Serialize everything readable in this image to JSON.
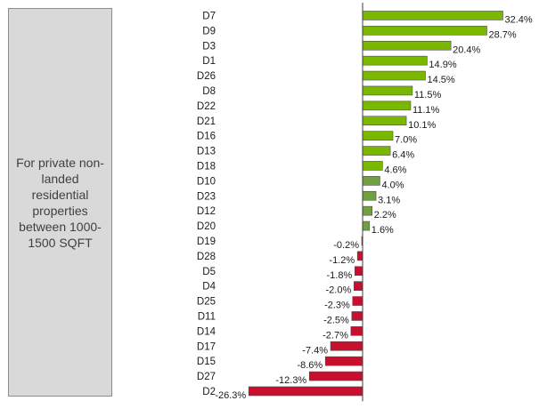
{
  "note": "For private non-landed residential properties between 1000-1500 SQFT",
  "chart_data": {
    "type": "bar",
    "orientation": "horizontal",
    "categories": [
      "D7",
      "D9",
      "D3",
      "D1",
      "D26",
      "D8",
      "D22",
      "D21",
      "D16",
      "D13",
      "D18",
      "D10",
      "D23",
      "D12",
      "D20",
      "D19",
      "D28",
      "D5",
      "D4",
      "D25",
      "D11",
      "D14",
      "D17",
      "D15",
      "D27",
      "D2"
    ],
    "values": [
      32.4,
      28.7,
      20.4,
      14.9,
      14.5,
      11.5,
      11.1,
      10.1,
      7.0,
      6.4,
      4.6,
      4.0,
      3.1,
      2.2,
      1.6,
      -0.2,
      -1.2,
      -1.8,
      -2.0,
      -2.3,
      -2.5,
      -2.7,
      -7.4,
      -8.6,
      -12.3,
      -26.3
    ],
    "value_labels": [
      "32.4%",
      "28.7%",
      "20.4%",
      "14.9%",
      "14.5%",
      "11.5%",
      "11.1%",
      "10.1%",
      "7.0%",
      "6.4%",
      "4.6%",
      "4.0%",
      "3.1%",
      "2.2%",
      "1.6%",
      "-0.2%",
      "-1.2%",
      "-1.8%",
      "-2.0%",
      "-2.3%",
      "-2.5%",
      "-2.7%",
      "-7.4%",
      "-8.6%",
      "-12.3%",
      "-26.3%"
    ],
    "xlim": [
      -26.3,
      32.4
    ],
    "grid": false,
    "colors": {
      "strong_positive": "#7ab800",
      "moderate_positive": "#70a040",
      "negative": "#c8102e",
      "border": "#4d4d4d",
      "axis": "#404040"
    }
  }
}
